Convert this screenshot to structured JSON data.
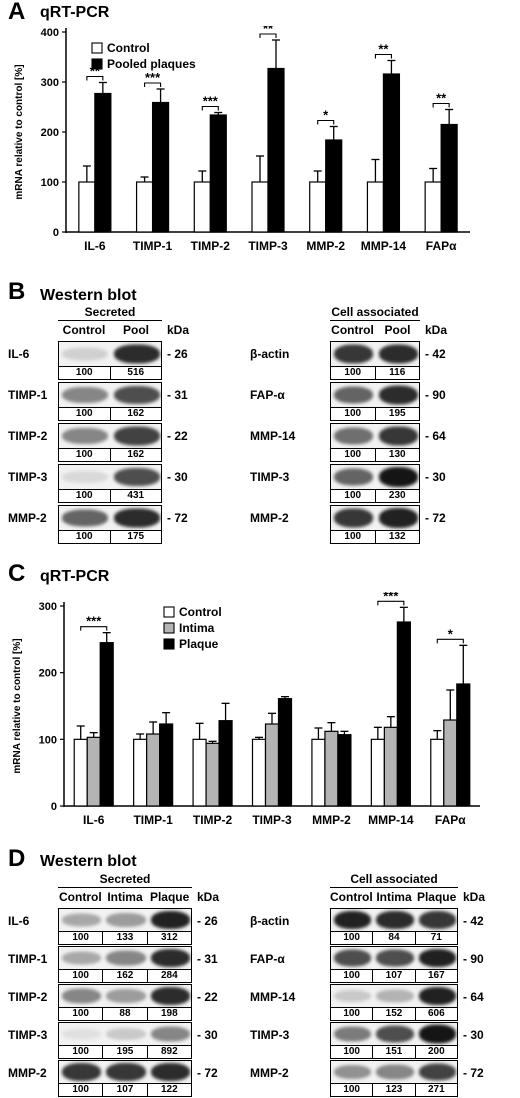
{
  "panels": {
    "A": {
      "letter": "A",
      "title": "qRT-PCR"
    },
    "B": {
      "letter": "B",
      "title": "Western blot"
    },
    "C": {
      "letter": "C",
      "title": "qRT-PCR"
    },
    "D": {
      "letter": "D",
      "title": "Western blot"
    }
  },
  "chart_data": [
    {
      "panel": "A",
      "type": "bar",
      "title": "qRT-PCR",
      "xlabel": "",
      "ylabel": "mRNA relative to control [%]",
      "ylim": [
        0,
        400
      ],
      "yticks": [
        0,
        100,
        200,
        300,
        400
      ],
      "categories": [
        "IL-6",
        "TIMP-1",
        "TIMP-2",
        "TIMP-3",
        "MMP-2",
        "MMP-14",
        "FAPα"
      ],
      "series": [
        {
          "name": "Control",
          "color": "#ffffff",
          "values": [
            100,
            100,
            100,
            100,
            100,
            100,
            100
          ],
          "errors": [
            32,
            10,
            22,
            52,
            22,
            45,
            27
          ]
        },
        {
          "name": "Pooled plaques",
          "color": "#000000",
          "values": [
            277,
            259,
            234,
            327,
            184,
            316,
            215
          ],
          "errors": [
            22,
            27,
            5,
            57,
            27,
            27,
            30
          ]
        }
      ],
      "significance": [
        {
          "category": 0,
          "label": "**"
        },
        {
          "category": 1,
          "label": "***"
        },
        {
          "category": 2,
          "label": "***"
        },
        {
          "category": 3,
          "label": "**"
        },
        {
          "category": 4,
          "label": "*"
        },
        {
          "category": 5,
          "label": "**"
        },
        {
          "category": 6,
          "label": "**"
        }
      ],
      "legend": "top-left"
    },
    {
      "panel": "C",
      "type": "bar",
      "title": "qRT-PCR",
      "xlabel": "",
      "ylabel": "mRNA relative to control [%]",
      "ylim": [
        0,
        300
      ],
      "yticks": [
        0,
        100,
        200,
        300
      ],
      "categories": [
        "IL-6",
        "TIMP-1",
        "TIMP-2",
        "TIMP-3",
        "MMP-2",
        "MMP-14",
        "FAPα"
      ],
      "series": [
        {
          "name": "Control",
          "color": "#ffffff",
          "values": [
            100,
            100,
            100,
            100,
            100,
            100,
            100
          ],
          "errors": [
            20,
            8,
            24,
            3,
            17,
            18,
            13
          ]
        },
        {
          "name": "Intima",
          "color": "#b4b4b4",
          "values": [
            103,
            108,
            94,
            123,
            112,
            118,
            129
          ],
          "errors": [
            7,
            18,
            3,
            16,
            13,
            16,
            45
          ]
        },
        {
          "name": "Plaque",
          "color": "#000000",
          "values": [
            245,
            123,
            128,
            161,
            107,
            276,
            183
          ],
          "errors": [
            15,
            17,
            26,
            3,
            5,
            22,
            58
          ]
        }
      ],
      "significance": [
        {
          "category": 0,
          "label": "***"
        },
        {
          "category": 5,
          "label": "***"
        },
        {
          "category": 6,
          "label": "*"
        }
      ],
      "legend": "top-center"
    }
  ],
  "western_B": {
    "kda_header": "kDa",
    "secreted": {
      "heading": "Secreted",
      "columns": [
        "Control",
        "Pool"
      ],
      "rows": [
        {
          "label": "IL-6",
          "values": [
            "100",
            "516"
          ],
          "kda": "- 26",
          "intensity": [
            0.12,
            0.85
          ]
        },
        {
          "label": "TIMP-1",
          "values": [
            "100",
            "162"
          ],
          "kda": "- 31",
          "intensity": [
            0.45,
            0.7
          ]
        },
        {
          "label": "TIMP-2",
          "values": [
            "100",
            "162"
          ],
          "kda": "- 22",
          "intensity": [
            0.45,
            0.75
          ]
        },
        {
          "label": "TIMP-3",
          "values": [
            "100",
            "431"
          ],
          "kda": "- 30",
          "intensity": [
            0.08,
            0.7
          ]
        },
        {
          "label": "MMP-2",
          "values": [
            "100",
            "175"
          ],
          "kda": "- 72",
          "intensity": [
            0.6,
            0.85
          ]
        }
      ]
    },
    "cell": {
      "heading": "Cell associated",
      "columns": [
        "Control",
        "Pool"
      ],
      "rows": [
        {
          "label": "β-actin",
          "values": [
            "100",
            "116"
          ],
          "kda": "- 42",
          "intensity": [
            0.8,
            0.85
          ]
        },
        {
          "label": "FAP-α",
          "values": [
            "100",
            "195"
          ],
          "kda": "- 90",
          "intensity": [
            0.6,
            0.85
          ]
        },
        {
          "label": "MMP-14",
          "values": [
            "100",
            "130"
          ],
          "kda": "- 64",
          "intensity": [
            0.55,
            0.8
          ]
        },
        {
          "label": "TIMP-3",
          "values": [
            "100",
            "230"
          ],
          "kda": "- 30",
          "intensity": [
            0.6,
            0.95
          ]
        },
        {
          "label": "MMP-2",
          "values": [
            "100",
            "132"
          ],
          "kda": "- 72",
          "intensity": [
            0.8,
            0.9
          ]
        }
      ]
    }
  },
  "western_D": {
    "kda_header": "kDa",
    "secreted": {
      "heading": "Secreted",
      "columns": [
        "Control",
        "Intima",
        "Plaque"
      ],
      "rows": [
        {
          "label": "IL-6",
          "values": [
            "100",
            "133",
            "312"
          ],
          "kda": "- 26",
          "intensity": [
            0.3,
            0.35,
            0.9
          ]
        },
        {
          "label": "TIMP-1",
          "values": [
            "100",
            "162",
            "284"
          ],
          "kda": "- 31",
          "intensity": [
            0.3,
            0.45,
            0.85
          ]
        },
        {
          "label": "TIMP-2",
          "values": [
            "100",
            "88",
            "198"
          ],
          "kda": "- 22",
          "intensity": [
            0.45,
            0.35,
            0.85
          ]
        },
        {
          "label": "TIMP-3",
          "values": [
            "100",
            "195",
            "892"
          ],
          "kda": "- 30",
          "intensity": [
            0.05,
            0.15,
            0.45
          ]
        },
        {
          "label": "MMP-2",
          "values": [
            "100",
            "107",
            "122"
          ],
          "kda": "- 72",
          "intensity": [
            0.8,
            0.8,
            0.85
          ]
        }
      ]
    },
    "cell": {
      "heading": "Cell associated",
      "columns": [
        "Control",
        "Intima",
        "Plaque"
      ],
      "rows": [
        {
          "label": "β-actin",
          "values": [
            "100",
            "84",
            "71"
          ],
          "kda": "- 42",
          "intensity": [
            0.9,
            0.85,
            0.8
          ]
        },
        {
          "label": "FAP-α",
          "values": [
            "100",
            "107",
            "167"
          ],
          "kda": "- 90",
          "intensity": [
            0.7,
            0.7,
            0.9
          ]
        },
        {
          "label": "MMP-14",
          "values": [
            "100",
            "152",
            "606"
          ],
          "kda": "- 64",
          "intensity": [
            0.15,
            0.25,
            0.9
          ]
        },
        {
          "label": "TIMP-3",
          "values": [
            "100",
            "151",
            "200"
          ],
          "kda": "- 30",
          "intensity": [
            0.5,
            0.7,
            0.95
          ]
        },
        {
          "label": "MMP-2",
          "values": [
            "100",
            "123",
            "271"
          ],
          "kda": "- 72",
          "intensity": [
            0.4,
            0.45,
            0.75
          ]
        }
      ]
    }
  }
}
